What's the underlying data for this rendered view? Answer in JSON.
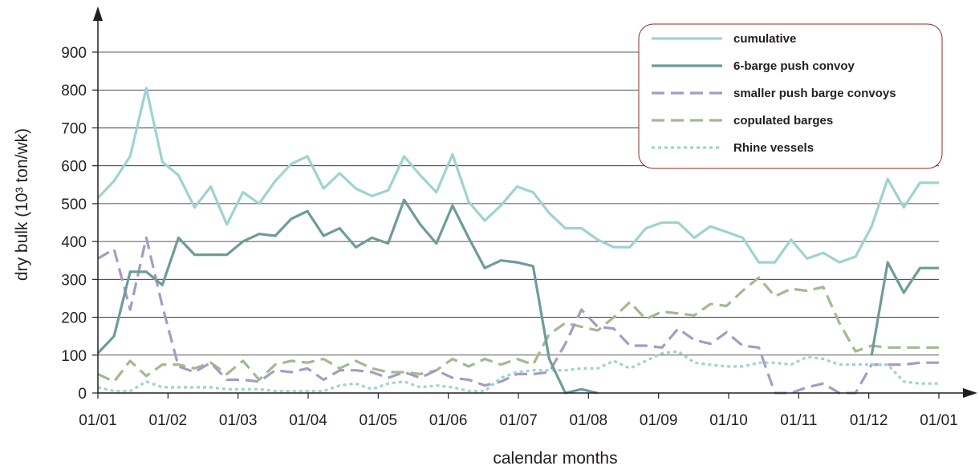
{
  "chart_data": {
    "type": "line",
    "xlabel": "calendar months",
    "ylabel": "dry bulk (10³ ton/wk)",
    "x_tick_labels": [
      "01/01",
      "01/02",
      "01/03",
      "01/04",
      "01/05",
      "01/06",
      "01/07",
      "01/08",
      "01/09",
      "01/10",
      "01/11",
      "01/12",
      "01/01"
    ],
    "y_ticks": [
      0,
      100,
      200,
      300,
      400,
      500,
      600,
      700,
      800,
      900
    ],
    "ylim": [
      0,
      950
    ],
    "xlim": [
      0,
      12
    ],
    "grid": "horizontal",
    "legend_position": "top-right",
    "series": [
      {
        "name": "cumulative",
        "color": "#9fd3cf",
        "style": "solid",
        "x": [
          0,
          0.23,
          0.46,
          0.69,
          0.92,
          1.15,
          1.38,
          1.61,
          1.84,
          2.07,
          2.3,
          2.53,
          2.76,
          2.99,
          3.22,
          3.45,
          3.68,
          3.91,
          4.14,
          4.37,
          4.6,
          4.83,
          5.06,
          5.29,
          5.52,
          5.75,
          5.98,
          6.21,
          6.44,
          6.67,
          6.9,
          7.13,
          7.36,
          7.59,
          7.82,
          8.05,
          8.28,
          8.51,
          8.74,
          8.97,
          9.2,
          9.43,
          9.66,
          9.89,
          10.12,
          10.35,
          10.58,
          10.81,
          11.04,
          11.27,
          11.5,
          11.73,
          12
        ],
        "values": [
          515,
          560,
          625,
          805,
          610,
          575,
          490,
          545,
          445,
          530,
          500,
          560,
          605,
          625,
          540,
          580,
          540,
          520,
          535,
          625,
          575,
          530,
          630,
          505,
          455,
          495,
          545,
          530,
          475,
          435,
          435,
          405,
          385,
          385,
          435,
          450,
          450,
          410,
          440,
          425,
          410,
          345,
          345,
          405,
          355,
          370,
          345,
          360,
          440,
          565,
          490,
          555,
          555
        ]
      },
      {
        "name": "6-barge push convoy",
        "color": "#6e9c98",
        "style": "solid",
        "x": [
          0,
          0.23,
          0.46,
          0.69,
          0.92,
          1.15,
          1.38,
          1.61,
          1.84,
          2.07,
          2.3,
          2.53,
          2.76,
          2.99,
          3.22,
          3.45,
          3.68,
          3.91,
          4.14,
          4.37,
          4.6,
          4.83,
          5.06,
          5.29,
          5.52,
          5.75,
          5.98,
          6.21,
          6.44,
          6.67,
          6.9,
          7.13,
          7.36,
          7.59,
          7.82,
          8.05,
          8.28,
          8.51,
          8.74,
          8.97,
          9.2,
          9.43,
          9.66,
          9.89,
          10.12,
          10.35,
          10.58,
          10.81,
          11.04,
          11.27,
          11.5,
          11.73,
          12
        ],
        "values": [
          105,
          150,
          320,
          320,
          285,
          410,
          365,
          365,
          365,
          400,
          420,
          415,
          460,
          480,
          415,
          435,
          385,
          410,
          395,
          510,
          445,
          395,
          495,
          410,
          330,
          350,
          345,
          335,
          90,
          0,
          10,
          0,
          null,
          null,
          null,
          null,
          null,
          null,
          null,
          null,
          null,
          null,
          null,
          null,
          null,
          null,
          null,
          null,
          100,
          345,
          265,
          330,
          330
        ]
      },
      {
        "name": "smaller push barge convoys",
        "color": "#a59cc4",
        "style": "dashed",
        "x": [
          0,
          0.23,
          0.46,
          0.69,
          0.92,
          1.15,
          1.38,
          1.61,
          1.84,
          2.07,
          2.3,
          2.53,
          2.76,
          2.99,
          3.22,
          3.45,
          3.68,
          3.91,
          4.14,
          4.37,
          4.6,
          4.83,
          5.06,
          5.29,
          5.52,
          5.75,
          5.98,
          6.21,
          6.44,
          6.67,
          6.9,
          7.13,
          7.36,
          7.59,
          7.82,
          8.05,
          8.28,
          8.51,
          8.74,
          8.97,
          9.2,
          9.43,
          9.66,
          9.89,
          10.12,
          10.35,
          10.58,
          10.81,
          11.04,
          11.27,
          11.5,
          11.73,
          12
        ],
        "values": [
          355,
          380,
          220,
          410,
          230,
          70,
          55,
          80,
          35,
          35,
          30,
          60,
          55,
          65,
          35,
          60,
          60,
          55,
          40,
          55,
          40,
          60,
          40,
          35,
          20,
          30,
          50,
          50,
          55,
          130,
          220,
          175,
          170,
          125,
          125,
          120,
          170,
          140,
          130,
          160,
          125,
          120,
          0,
          0,
          15,
          25,
          0,
          0,
          75,
          75,
          75,
          80,
          80
        ]
      },
      {
        "name": "copulated barges",
        "color": "#a3b98f",
        "style": "dashed",
        "x": [
          0,
          0.23,
          0.46,
          0.69,
          0.92,
          1.15,
          1.38,
          1.61,
          1.84,
          2.07,
          2.3,
          2.53,
          2.76,
          2.99,
          3.22,
          3.45,
          3.68,
          3.91,
          4.14,
          4.37,
          4.6,
          4.83,
          5.06,
          5.29,
          5.52,
          5.75,
          5.98,
          6.21,
          6.44,
          6.67,
          6.9,
          7.13,
          7.36,
          7.59,
          7.82,
          8.05,
          8.28,
          8.51,
          8.74,
          8.97,
          9.2,
          9.43,
          9.66,
          9.89,
          10.12,
          10.35,
          10.58,
          10.81,
          11.04,
          11.27,
          11.5,
          11.73,
          12
        ],
        "values": [
          50,
          30,
          85,
          45,
          75,
          75,
          65,
          80,
          50,
          85,
          35,
          75,
          85,
          80,
          90,
          65,
          85,
          65,
          55,
          55,
          50,
          60,
          90,
          70,
          90,
          75,
          90,
          75,
          155,
          185,
          175,
          165,
          200,
          240,
          195,
          215,
          210,
          205,
          235,
          230,
          270,
          305,
          255,
          275,
          270,
          280,
          185,
          110,
          125,
          120,
          120,
          120,
          120
        ]
      },
      {
        "name": "Rhine vessels",
        "color": "#9fd3cf",
        "style": "dotted",
        "x": [
          0,
          0.23,
          0.46,
          0.69,
          0.92,
          1.15,
          1.38,
          1.61,
          1.84,
          2.07,
          2.3,
          2.53,
          2.76,
          2.99,
          3.22,
          3.45,
          3.68,
          3.91,
          4.14,
          4.37,
          4.6,
          4.83,
          5.06,
          5.29,
          5.52,
          5.75,
          5.98,
          6.21,
          6.44,
          6.67,
          6.9,
          7.13,
          7.36,
          7.59,
          7.82,
          8.05,
          8.28,
          8.51,
          8.74,
          8.97,
          9.2,
          9.43,
          9.66,
          9.89,
          10.12,
          10.35,
          10.58,
          10.81,
          11.04,
          11.27,
          11.5,
          11.73,
          12
        ],
        "values": [
          15,
          5,
          5,
          30,
          15,
          15,
          15,
          15,
          10,
          10,
          10,
          5,
          5,
          5,
          5,
          20,
          25,
          10,
          25,
          30,
          15,
          20,
          15,
          5,
          5,
          40,
          55,
          60,
          60,
          60,
          65,
          65,
          85,
          65,
          85,
          105,
          110,
          80,
          75,
          70,
          70,
          80,
          80,
          75,
          95,
          90,
          75,
          75,
          75,
          75,
          30,
          25,
          25
        ]
      }
    ]
  }
}
